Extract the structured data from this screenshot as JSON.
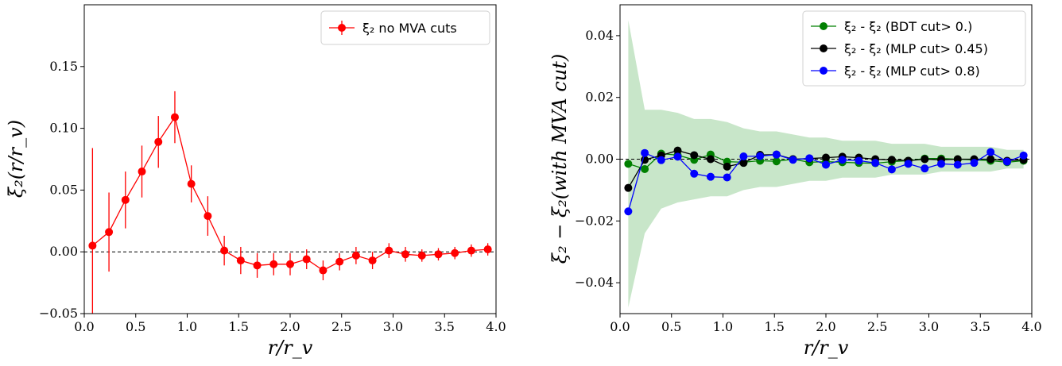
{
  "chart_data": [
    {
      "type": "line",
      "xlabel": "r/r_v",
      "ylabel": "ξ₂(r/r_v)",
      "xlim": [
        0.0,
        4.0
      ],
      "ylim": [
        -0.05,
        0.2
      ],
      "xticks": [
        0.0,
        0.5,
        1.0,
        1.5,
        2.0,
        2.5,
        3.0,
        3.5,
        4.0
      ],
      "xtick_labels": [
        "0.0",
        "0.5",
        "1.0",
        "1.5",
        "2.0",
        "2.5",
        "3.0",
        "3.5",
        "4.0"
      ],
      "yticks": [
        -0.05,
        0.0,
        0.05,
        0.1,
        0.15
      ],
      "ytick_labels": [
        "−0.05",
        "0.00",
        "0.05",
        "0.10",
        "0.15"
      ],
      "reference_line": 0.0,
      "legend_position": "top-right",
      "x": [
        0.08,
        0.24,
        0.4,
        0.56,
        0.72,
        0.88,
        1.04,
        1.2,
        1.36,
        1.52,
        1.68,
        1.84,
        2.0,
        2.16,
        2.32,
        2.48,
        2.64,
        2.8,
        2.96,
        3.12,
        3.28,
        3.44,
        3.6,
        3.76,
        3.92
      ],
      "series": [
        {
          "name": "ξ₂ no MVA cuts",
          "color": "#ff0000",
          "y": [
            0.005,
            0.016,
            0.042,
            0.065,
            0.089,
            0.109,
            0.055,
            0.029,
            0.001,
            -0.007,
            -0.011,
            -0.01,
            -0.01,
            -0.006,
            -0.015,
            -0.008,
            -0.003,
            -0.007,
            0.001,
            -0.002,
            -0.003,
            -0.002,
            -0.001,
            0.001,
            0.002
          ],
          "yerr": [
            0.079,
            0.032,
            0.023,
            0.021,
            0.021,
            0.021,
            0.015,
            0.016,
            0.012,
            0.011,
            0.01,
            0.009,
            0.009,
            0.008,
            0.008,
            0.007,
            0.007,
            0.007,
            0.006,
            0.006,
            0.005,
            0.005,
            0.005,
            0.005,
            0.005
          ]
        }
      ]
    },
    {
      "type": "line",
      "xlabel": "r/r_v",
      "ylabel": "ξ₂ − ξ₂(with MVA cut)",
      "xlim": [
        0.0,
        4.0
      ],
      "ylim": [
        -0.05,
        0.05
      ],
      "xticks": [
        0.0,
        0.5,
        1.0,
        1.5,
        2.0,
        2.5,
        3.0,
        3.5,
        4.0
      ],
      "xtick_labels": [
        "0.0",
        "0.5",
        "1.0",
        "1.5",
        "2.0",
        "2.5",
        "3.0",
        "3.5",
        "4.0"
      ],
      "yticks": [
        -0.04,
        -0.02,
        0.0,
        0.02,
        0.04
      ],
      "ytick_labels": [
        "−0.04",
        "−0.02",
        "0.00",
        "0.02",
        "0.04"
      ],
      "reference_line": 0.0,
      "legend_position": "top-right",
      "x": [
        0.08,
        0.24,
        0.4,
        0.56,
        0.72,
        0.88,
        1.04,
        1.2,
        1.36,
        1.52,
        1.68,
        1.84,
        2.0,
        2.16,
        2.32,
        2.48,
        2.64,
        2.8,
        2.96,
        3.12,
        3.28,
        3.44,
        3.6,
        3.76,
        3.92
      ],
      "band": {
        "color": "#c8e6c9",
        "upper": [
          0.045,
          0.016,
          0.016,
          0.015,
          0.013,
          0.013,
          0.012,
          0.01,
          0.009,
          0.009,
          0.008,
          0.007,
          0.007,
          0.006,
          0.006,
          0.006,
          0.005,
          0.005,
          0.005,
          0.004,
          0.004,
          0.004,
          0.004,
          0.003,
          0.003
        ],
        "lower": [
          -0.048,
          -0.024,
          -0.016,
          -0.014,
          -0.013,
          -0.012,
          -0.012,
          -0.01,
          -0.009,
          -0.009,
          -0.008,
          -0.007,
          -0.007,
          -0.006,
          -0.006,
          -0.006,
          -0.005,
          -0.005,
          -0.005,
          -0.004,
          -0.004,
          -0.004,
          -0.004,
          -0.003,
          -0.003
        ]
      },
      "series": [
        {
          "name": "ξ₂ - ξ₂ (BDT cut> 0.)",
          "color": "#008000",
          "y": [
            -0.0015,
            -0.0032,
            0.0018,
            0.0013,
            -0.0002,
            0.0015,
            -0.0008,
            -0.001,
            -0.0005,
            -0.0007,
            0.0,
            -0.001,
            -0.0008,
            -0.001,
            -0.0012,
            -0.0013,
            -0.0008,
            -0.0005,
            0.0002,
            0.0002,
            0.0,
            -0.0002,
            -0.0005,
            -0.001,
            -0.0005
          ]
        },
        {
          "name": "ξ₂ - ξ₂ (MLP cut> 0.45)",
          "color": "#000000",
          "y": [
            -0.0093,
            -0.0002,
            0.0012,
            0.0028,
            0.0013,
            0.0,
            -0.0024,
            -0.0012,
            0.0014,
            0.0015,
            0.0,
            0.0002,
            0.0005,
            0.0008,
            0.0005,
            0.0,
            -0.0002,
            -0.0005,
            0.0,
            -0.0002,
            0.0,
            0.0,
            0.0,
            -0.0005,
            -0.0002
          ]
        },
        {
          "name": "ξ₂ - ξ₂ (MLP cut> 0.8)",
          "color": "#0000ff",
          "y": [
            -0.0169,
            0.002,
            -0.0003,
            0.0008,
            -0.0047,
            -0.0057,
            -0.0059,
            0.0009,
            0.001,
            0.0015,
            -0.0002,
            0.0003,
            -0.0018,
            -0.0002,
            -0.0005,
            -0.0012,
            -0.0033,
            -0.0015,
            -0.003,
            -0.0015,
            -0.0018,
            -0.0012,
            0.0023,
            -0.0008,
            0.0012
          ]
        }
      ]
    }
  ]
}
